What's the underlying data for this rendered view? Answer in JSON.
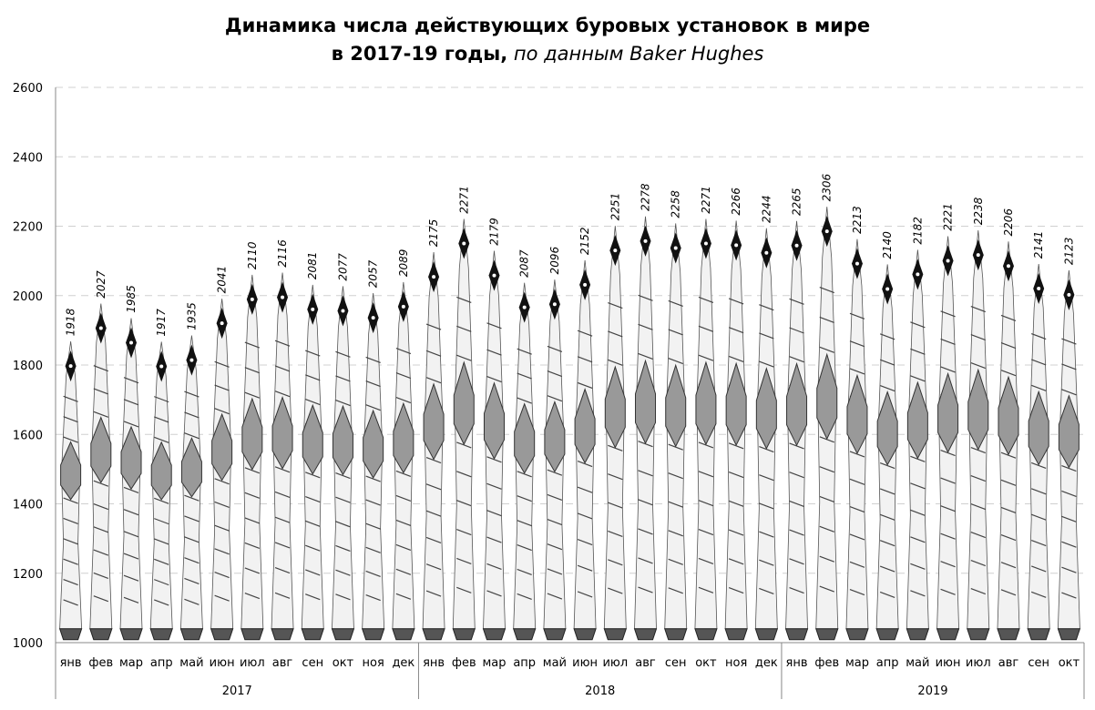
{
  "chart_data": {
    "type": "bar",
    "title_line1": "Динамика числа действующих буровых установок в мире",
    "title_line2_bold": "в 2017-19 годы,",
    "title_line2_italic": " по данным Baker Hughes",
    "xlabel": "",
    "ylabel": "",
    "ylim": [
      1000,
      2600
    ],
    "yticks": [
      1000,
      1200,
      1400,
      1600,
      1800,
      2000,
      2200,
      2400,
      2600
    ],
    "grid": true,
    "years": [
      {
        "label": "2017",
        "count": 12
      },
      {
        "label": "2018",
        "count": 12
      },
      {
        "label": "2019",
        "count": 10
      }
    ],
    "categories": [
      "янв",
      "фев",
      "мар",
      "апр",
      "май",
      "июн",
      "июл",
      "авг",
      "сен",
      "окт",
      "ноя",
      "дек",
      "янв",
      "фев",
      "мар",
      "апр",
      "май",
      "июн",
      "июл",
      "авг",
      "сен",
      "окт",
      "ноя",
      "дек",
      "янв",
      "фев",
      "мар",
      "апр",
      "май",
      "июн",
      "июл",
      "авг",
      "сен",
      "окт"
    ],
    "values": [
      1918,
      2027,
      1985,
      1917,
      1935,
      2041,
      2110,
      2116,
      2081,
      2077,
      2057,
      2089,
      2175,
      2271,
      2179,
      2087,
      2096,
      2152,
      2251,
      2278,
      2258,
      2271,
      2266,
      2244,
      2265,
      2306,
      2213,
      2140,
      2182,
      2221,
      2238,
      2206,
      2141,
      2123
    ]
  }
}
